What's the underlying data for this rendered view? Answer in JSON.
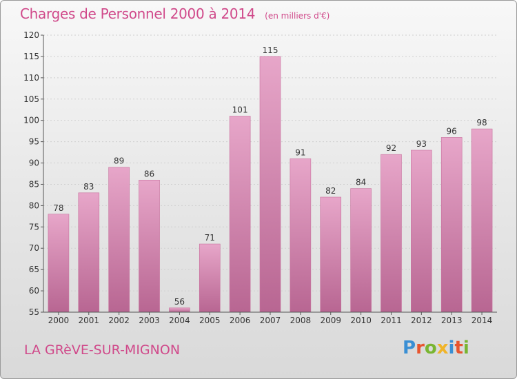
{
  "header": {
    "title": "Charges de Personnel 2000 à 2014",
    "unit": "(en milliers d'€)"
  },
  "footer": {
    "commune": "LA GRèVE-SUR-MIGNON",
    "logo": "Proxiti",
    "logo_colors": [
      "#3a8fd4",
      "#e8552e",
      "#79b531",
      "#f0b429",
      "#3a8fd4",
      "#e8552e",
      "#79b531"
    ]
  },
  "chart_data": {
    "type": "bar",
    "categories": [
      "2000",
      "2001",
      "2002",
      "2003",
      "2004",
      "2005",
      "2006",
      "2007",
      "2008",
      "2009",
      "2010",
      "2011",
      "2012",
      "2013",
      "2014"
    ],
    "values": [
      78,
      83,
      89,
      86,
      56,
      71,
      101,
      115,
      91,
      82,
      84,
      92,
      93,
      96,
      98
    ],
    "ylim": [
      55,
      120
    ],
    "yticks": [
      55,
      60,
      65,
      70,
      75,
      80,
      85,
      90,
      95,
      100,
      105,
      110,
      115,
      120
    ],
    "grid": true,
    "bar_color": "#d87aa9"
  }
}
